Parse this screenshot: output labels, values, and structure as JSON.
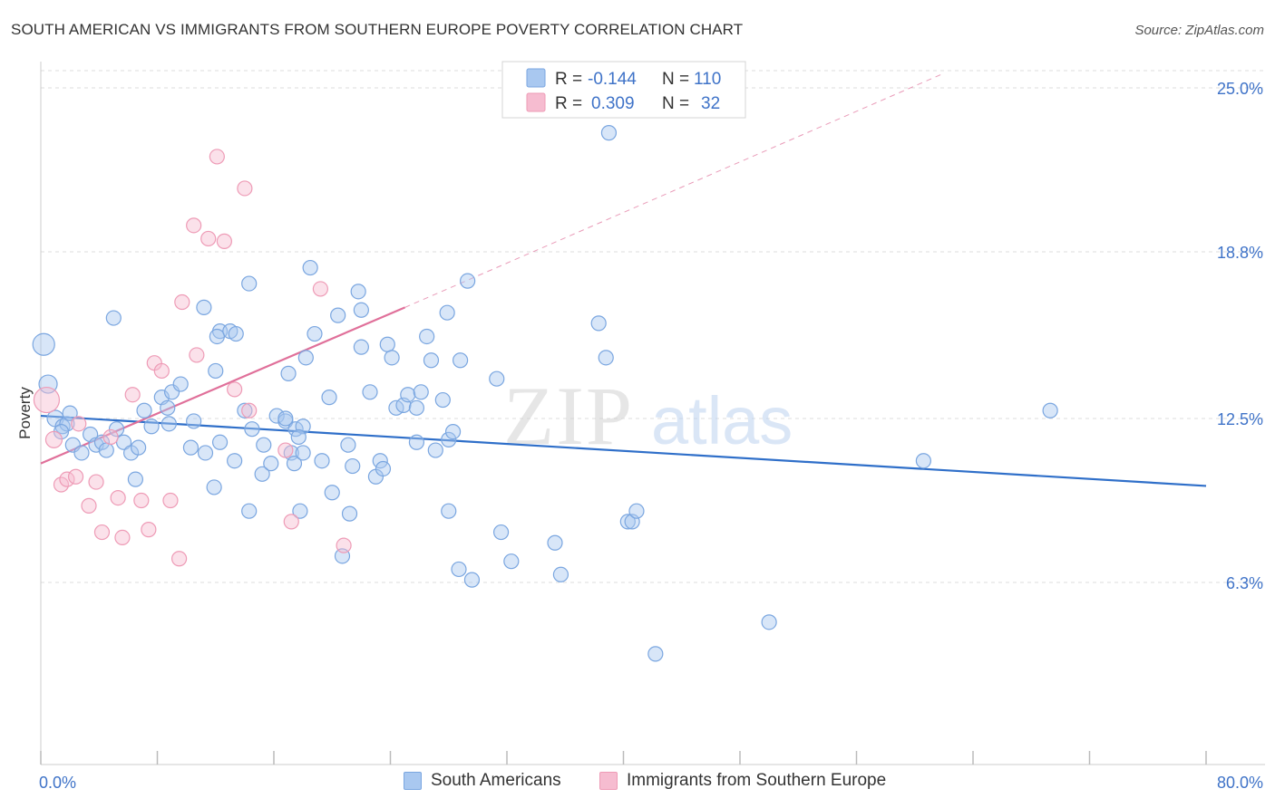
{
  "header": {
    "title": "SOUTH AMERICAN VS IMMIGRANTS FROM SOUTHERN EUROPE POVERTY CORRELATION CHART",
    "source": "Source: ZipAtlas.com"
  },
  "watermark": {
    "zip": "ZIP",
    "atlas": "atlas"
  },
  "legend_top": {
    "rows": [
      {
        "r_label": "R =",
        "r_value": "-0.144",
        "n_label": "N =",
        "n_value": "110"
      },
      {
        "r_label": "R =",
        "r_value": "0.309",
        "n_label": "N =",
        "n_value": "32"
      }
    ]
  },
  "colors": {
    "blue_fill": "#a9c8f0",
    "blue_stroke": "#7aa6e0",
    "blue_line": "#2f6fc9",
    "pink_fill": "#f6bcd0",
    "pink_stroke": "#ee9bb6",
    "pink_line": "#e0709a",
    "axis_text": "#3f73c8",
    "grid": "#dddddd"
  },
  "chart_data": {
    "type": "scatter",
    "title": "SOUTH AMERICAN VS IMMIGRANTS FROM SOUTHERN EUROPE POVERTY CORRELATION CHART",
    "xlabel": "",
    "ylabel": "Poverty",
    "xlim": [
      0,
      80
    ],
    "ylim": [
      0,
      26.0
    ],
    "x_tick_labels": [
      "0.0%",
      "80.0%"
    ],
    "y_ticks": [
      6.3,
      12.5,
      18.8,
      25.0
    ],
    "y_tick_labels": [
      "6.3%",
      "12.5%",
      "18.8%",
      "25.0%"
    ],
    "grid": true,
    "legend_position": "top-center",
    "series": [
      {
        "name": "South Americans",
        "R": -0.144,
        "N": 110,
        "trend": {
          "x": [
            0,
            80
          ],
          "y": [
            12.6,
            9.95
          ]
        },
        "points": [
          [
            0.2,
            15.3,
            12
          ],
          [
            0.5,
            13.8,
            10
          ],
          [
            1.0,
            12.5,
            9
          ],
          [
            1.5,
            12.2,
            8
          ],
          [
            1.8,
            12.3,
            8
          ],
          [
            2.0,
            12.7,
            8
          ],
          [
            1.4,
            12.0,
            8
          ],
          [
            2.2,
            11.5,
            8
          ],
          [
            3.4,
            11.9,
            8
          ],
          [
            2.8,
            11.2,
            8
          ],
          [
            3.8,
            11.5,
            8
          ],
          [
            4.2,
            11.6,
            8
          ],
          [
            4.5,
            11.3,
            8
          ],
          [
            5.2,
            12.1,
            8
          ],
          [
            5.7,
            11.6,
            8
          ],
          [
            6.2,
            11.2,
            8
          ],
          [
            6.7,
            11.4,
            8
          ],
          [
            6.5,
            10.2,
            8
          ],
          [
            5.0,
            16.3,
            8
          ],
          [
            7.1,
            12.8,
            8
          ],
          [
            7.6,
            12.2,
            8
          ],
          [
            8.3,
            13.3,
            8
          ],
          [
            8.8,
            12.3,
            8
          ],
          [
            9.0,
            13.5,
            8
          ],
          [
            8.7,
            12.9,
            8
          ],
          [
            9.6,
            13.8,
            8
          ],
          [
            10.5,
            12.4,
            8
          ],
          [
            10.3,
            11.4,
            8
          ],
          [
            11.3,
            11.2,
            8
          ],
          [
            12.3,
            11.6,
            8
          ],
          [
            11.9,
            9.9,
            8
          ],
          [
            12.0,
            14.3,
            8
          ],
          [
            11.2,
            16.7,
            8
          ],
          [
            12.3,
            15.8,
            8
          ],
          [
            13.0,
            15.8,
            8
          ],
          [
            12.1,
            15.6,
            8
          ],
          [
            13.3,
            10.9,
            8
          ],
          [
            14.3,
            9.0,
            8
          ],
          [
            13.4,
            15.7,
            8
          ],
          [
            14.3,
            17.6,
            8
          ],
          [
            14.0,
            12.8,
            8
          ],
          [
            14.5,
            12.1,
            8
          ],
          [
            15.2,
            10.4,
            8
          ],
          [
            15.3,
            11.5,
            8
          ],
          [
            15.8,
            10.8,
            8
          ],
          [
            16.2,
            12.6,
            8
          ],
          [
            16.8,
            12.4,
            8
          ],
          [
            17.2,
            11.2,
            8
          ],
          [
            16.8,
            12.5,
            8
          ],
          [
            17.5,
            12.1,
            8
          ],
          [
            17.0,
            14.2,
            8
          ],
          [
            17.4,
            10.8,
            8
          ],
          [
            18.0,
            12.2,
            8
          ],
          [
            18.2,
            14.8,
            8
          ],
          [
            17.7,
            11.8,
            8
          ],
          [
            18.0,
            11.2,
            8
          ],
          [
            17.8,
            9.0,
            8
          ],
          [
            18.5,
            18.2,
            8
          ],
          [
            18.8,
            15.7,
            8
          ],
          [
            19.3,
            10.9,
            8
          ],
          [
            20.0,
            9.7,
            8
          ],
          [
            19.8,
            13.3,
            8
          ],
          [
            20.4,
            16.4,
            8
          ],
          [
            21.1,
            11.5,
            8
          ],
          [
            21.2,
            8.9,
            8
          ],
          [
            20.7,
            7.3,
            8
          ],
          [
            21.4,
            10.7,
            8
          ],
          [
            22.0,
            15.2,
            8
          ],
          [
            21.8,
            17.3,
            8
          ],
          [
            22.0,
            16.6,
            8
          ],
          [
            22.6,
            13.5,
            8
          ],
          [
            23.0,
            10.3,
            8
          ],
          [
            23.3,
            10.9,
            8
          ],
          [
            23.5,
            10.6,
            8
          ],
          [
            23.8,
            15.3,
            8
          ],
          [
            24.1,
            14.8,
            8
          ],
          [
            24.4,
            12.9,
            8
          ],
          [
            24.9,
            13.0,
            8
          ],
          [
            25.2,
            13.4,
            8
          ],
          [
            25.8,
            12.9,
            8
          ],
          [
            26.1,
            13.5,
            8
          ],
          [
            25.8,
            11.6,
            8
          ],
          [
            26.5,
            15.6,
            8
          ],
          [
            26.8,
            14.7,
            8
          ],
          [
            27.1,
            11.3,
            8
          ],
          [
            27.6,
            13.2,
            8
          ],
          [
            27.9,
            16.5,
            8
          ],
          [
            28.0,
            11.7,
            8
          ],
          [
            28.3,
            12.0,
            8
          ],
          [
            28.0,
            9.0,
            8
          ],
          [
            28.8,
            14.7,
            8
          ],
          [
            29.3,
            17.7,
            8
          ],
          [
            29.6,
            6.4,
            8
          ],
          [
            28.7,
            6.8,
            8
          ],
          [
            31.3,
            14.0,
            8
          ],
          [
            31.6,
            8.2,
            8
          ],
          [
            32.3,
            7.1,
            8
          ],
          [
            35.3,
            7.8,
            8
          ],
          [
            35.7,
            6.6,
            8
          ],
          [
            38.3,
            16.1,
            8
          ],
          [
            38.8,
            14.8,
            8
          ],
          [
            40.3,
            8.6,
            8
          ],
          [
            40.6,
            8.6,
            8
          ],
          [
            40.9,
            9.0,
            8
          ],
          [
            39.0,
            23.3,
            8
          ],
          [
            42.2,
            3.6,
            8
          ],
          [
            50.0,
            4.8,
            8
          ],
          [
            60.6,
            10.9,
            8
          ],
          [
            69.3,
            12.8,
            8
          ]
        ]
      },
      {
        "name": "Immigrants from Southern Europe",
        "R": 0.309,
        "N": 32,
        "trend": {
          "x": [
            0,
            25
          ],
          "y": [
            10.8,
            16.7
          ]
        },
        "trend_extension": {
          "x": [
            25,
            62
          ],
          "y": [
            16.7,
            25.55
          ]
        },
        "points": [
          [
            0.4,
            13.2,
            14
          ],
          [
            0.9,
            11.7,
            9
          ],
          [
            1.4,
            10.0,
            8
          ],
          [
            1.8,
            10.2,
            8
          ],
          [
            2.4,
            10.3,
            8
          ],
          [
            2.6,
            12.3,
            8
          ],
          [
            3.3,
            9.2,
            8
          ],
          [
            3.8,
            10.1,
            8
          ],
          [
            4.2,
            8.2,
            8
          ],
          [
            4.8,
            11.8,
            8
          ],
          [
            5.3,
            9.5,
            8
          ],
          [
            5.6,
            8.0,
            8
          ],
          [
            6.3,
            13.4,
            8
          ],
          [
            6.9,
            9.4,
            8
          ],
          [
            7.4,
            8.3,
            8
          ],
          [
            7.8,
            14.6,
            8
          ],
          [
            8.3,
            14.3,
            8
          ],
          [
            8.9,
            9.4,
            8
          ],
          [
            9.5,
            7.2,
            8
          ],
          [
            9.7,
            16.9,
            8
          ],
          [
            10.5,
            19.8,
            8
          ],
          [
            10.7,
            14.9,
            8
          ],
          [
            11.5,
            19.3,
            8
          ],
          [
            12.1,
            22.4,
            8
          ],
          [
            12.6,
            19.2,
            8
          ],
          [
            13.3,
            13.6,
            8
          ],
          [
            14.0,
            21.2,
            8
          ],
          [
            14.3,
            12.8,
            8
          ],
          [
            16.8,
            11.3,
            8
          ],
          [
            17.2,
            8.6,
            8
          ],
          [
            19.2,
            17.4,
            8
          ],
          [
            20.8,
            7.7,
            8
          ]
        ]
      }
    ]
  },
  "legend_bottom": {
    "items": [
      {
        "label": "South Americans"
      },
      {
        "label": "Immigrants from Southern Europe"
      }
    ]
  }
}
